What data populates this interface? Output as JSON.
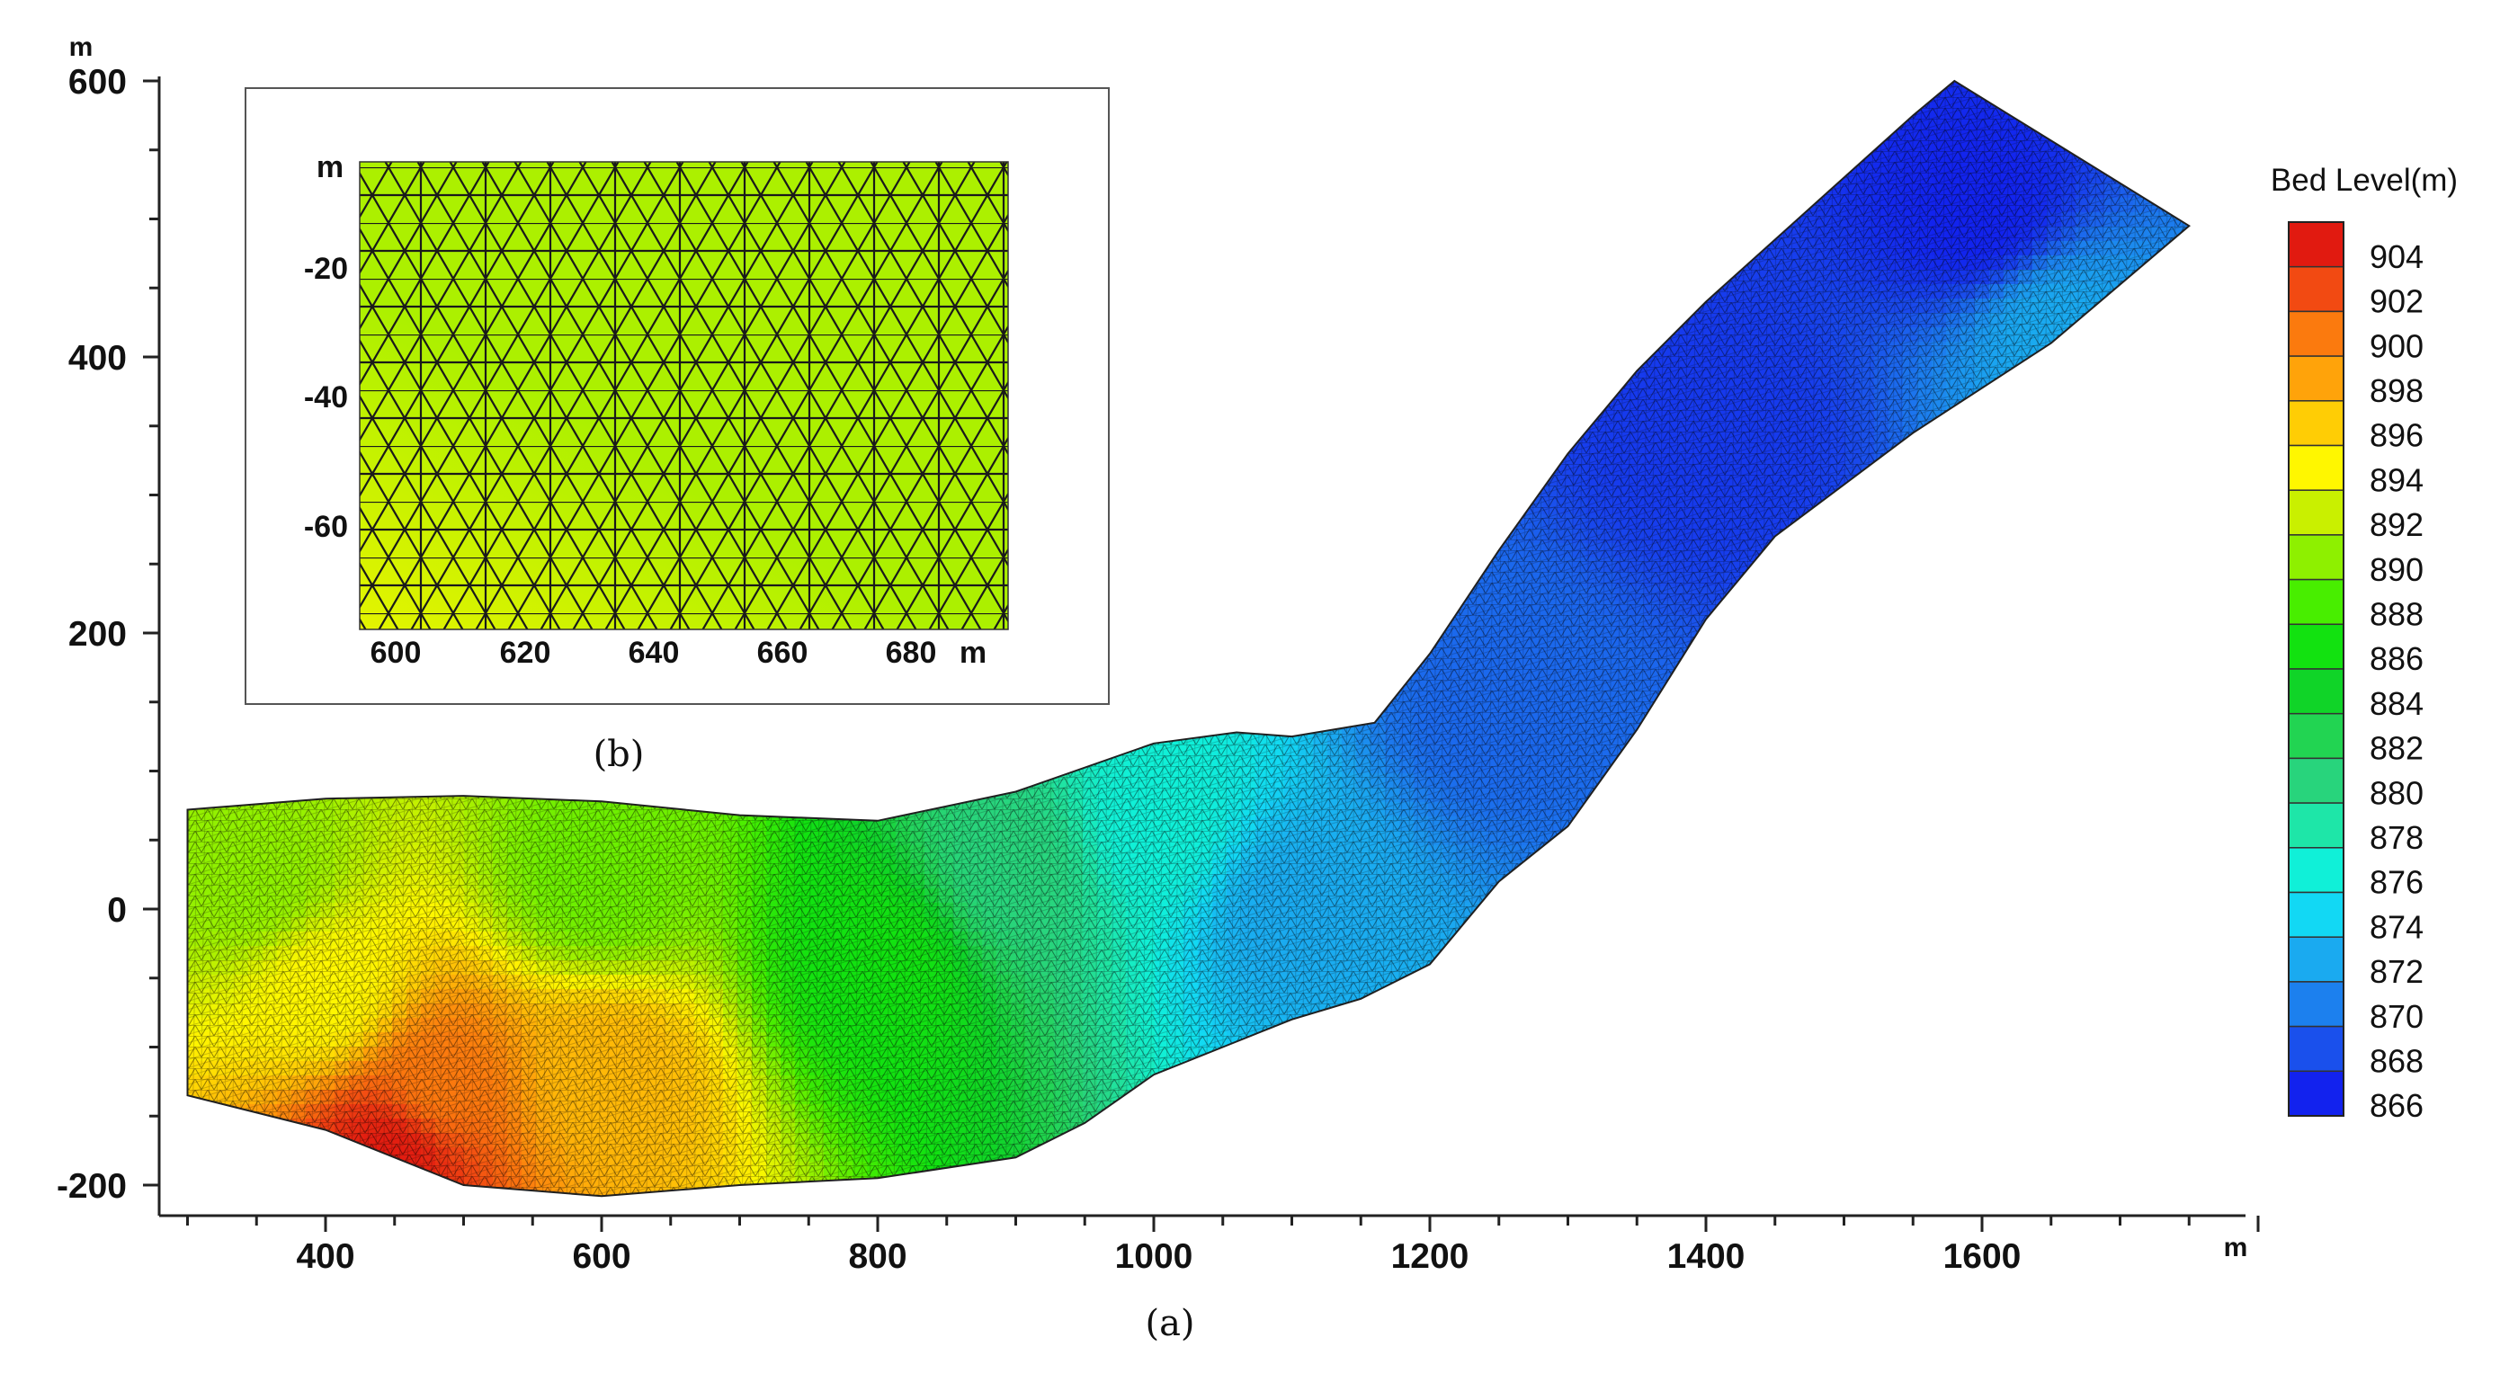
{
  "chart_data": [
    {
      "panel": "(a)",
      "type": "heatmap",
      "caption": "(a)",
      "x_unit": "m",
      "y_unit": "m",
      "xlim": [
        300,
        1800
      ],
      "ylim": [
        -220,
        600
      ],
      "x_ticks": [
        400,
        600,
        800,
        1000,
        1200,
        1400,
        1600
      ],
      "y_ticks": [
        -200,
        0,
        200,
        400,
        600
      ],
      "domain_outline": {
        "top_bank": [
          [
            300,
            72
          ],
          [
            400,
            80
          ],
          [
            500,
            82
          ],
          [
            600,
            78
          ],
          [
            700,
            68
          ],
          [
            800,
            64
          ],
          [
            900,
            85
          ],
          [
            1000,
            120
          ],
          [
            1060,
            128
          ],
          [
            1100,
            125
          ],
          [
            1160,
            135
          ],
          [
            1200,
            185
          ],
          [
            1250,
            260
          ],
          [
            1300,
            330
          ],
          [
            1350,
            390
          ],
          [
            1400,
            440
          ],
          [
            1450,
            485
          ],
          [
            1500,
            530
          ],
          [
            1550,
            575
          ],
          [
            1580,
            600
          ]
        ],
        "bottom_bank": [
          [
            1750,
            495
          ],
          [
            1650,
            410
          ],
          [
            1550,
            345
          ],
          [
            1450,
            270
          ],
          [
            1400,
            210
          ],
          [
            1350,
            130
          ],
          [
            1300,
            60
          ],
          [
            1250,
            20
          ],
          [
            1200,
            -40
          ],
          [
            1150,
            -65
          ],
          [
            1100,
            -80
          ],
          [
            1050,
            -100
          ],
          [
            1000,
            -120
          ],
          [
            950,
            -155
          ],
          [
            900,
            -180
          ],
          [
            800,
            -195
          ],
          [
            700,
            -200
          ],
          [
            600,
            -208
          ],
          [
            500,
            -200
          ],
          [
            400,
            -160
          ],
          [
            300,
            -135
          ]
        ]
      },
      "bed_level_field": [
        {
          "x": 450,
          "y": -175,
          "value": 904
        },
        {
          "x": 480,
          "y": -130,
          "value": 900
        },
        {
          "x": 600,
          "y": -120,
          "value": 897
        },
        {
          "x": 400,
          "y": -60,
          "value": 894
        },
        {
          "x": 350,
          "y": 20,
          "value": 890
        },
        {
          "x": 600,
          "y": 20,
          "value": 889
        },
        {
          "x": 800,
          "y": -40,
          "value": 886
        },
        {
          "x": 900,
          "y": 30,
          "value": 880
        },
        {
          "x": 1000,
          "y": 60,
          "value": 876
        },
        {
          "x": 1100,
          "y": 0,
          "value": 872
        },
        {
          "x": 1250,
          "y": 150,
          "value": 869
        },
        {
          "x": 1400,
          "y": 350,
          "value": 867
        },
        {
          "x": 1600,
          "y": 500,
          "value": 866
        },
        {
          "x": 1650,
          "y": 420,
          "value": 872
        }
      ]
    },
    {
      "panel": "(b)",
      "type": "heatmap",
      "caption": "(b)",
      "x_unit": "m",
      "y_unit": "m",
      "xlim": [
        595,
        695
      ],
      "ylim": [
        -80,
        0
      ],
      "x_ticks": [
        600,
        620,
        640,
        660,
        680
      ],
      "y_ticks": [
        -20,
        -40,
        -60
      ],
      "fill_level": 891,
      "lower_left_level": 893,
      "mesh": "triangular"
    }
  ],
  "legend": {
    "title": "Bed Level(m)",
    "levels": [
      "904",
      "902",
      "900",
      "898",
      "896",
      "894",
      "892",
      "890",
      "888",
      "886",
      "884",
      "882",
      "880",
      "878",
      "876",
      "874",
      "872",
      "870",
      "868",
      "866"
    ],
    "colors": [
      "#e11a10",
      "#f24a12",
      "#fb7a0e",
      "#ffa30a",
      "#ffcd05",
      "#fff700",
      "#c9f000",
      "#8ef000",
      "#48ee00",
      "#12e210",
      "#10d428",
      "#22d452",
      "#28d47c",
      "#1ee6a8",
      "#10f0d8",
      "#12d8f4",
      "#1aaaf0",
      "#1c80ee",
      "#1a50ec",
      "#1222ee"
    ]
  }
}
